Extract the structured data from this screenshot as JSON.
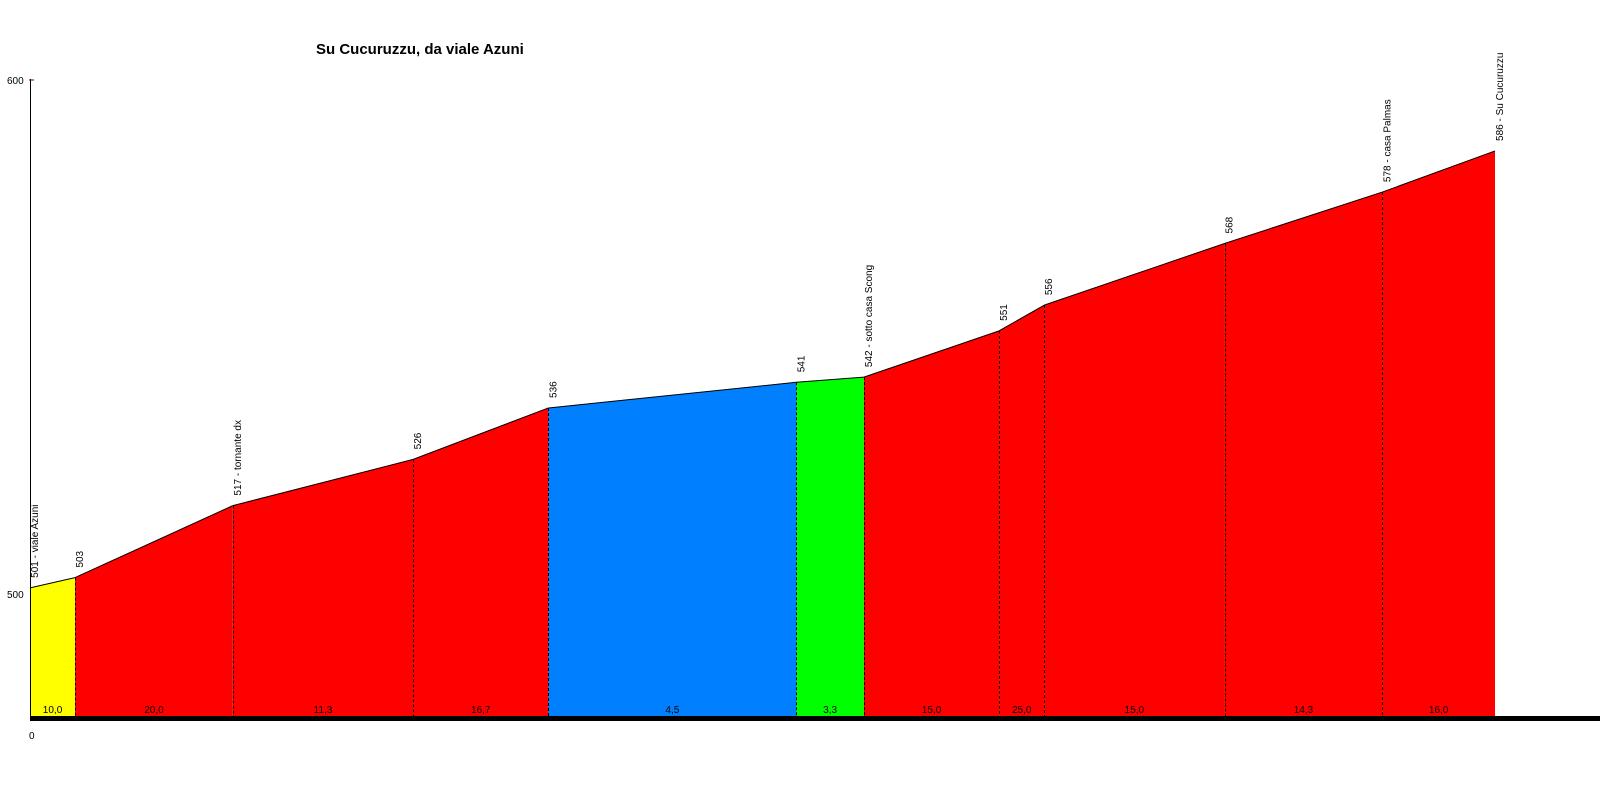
{
  "chart_data": {
    "type": "area",
    "title": "Su Cucuruzzu, da viale Azuni",
    "xlabel": "",
    "ylabel": "",
    "x_tick_labels": [
      "0"
    ],
    "y_tick_labels": [
      "600",
      "500"
    ],
    "ylim": [
      475,
      600
    ],
    "points": [
      {
        "x": 0,
        "elevation": 501,
        "label": "501 - viale Azuni"
      },
      {
        "x": 0.02,
        "elevation": 503,
        "label": "503"
      },
      {
        "x": 0.09,
        "elevation": 517,
        "label": "517 - tornante dx"
      },
      {
        "x": 0.17,
        "elevation": 526,
        "label": "526"
      },
      {
        "x": 0.23,
        "elevation": 536,
        "label": "536"
      },
      {
        "x": 0.34,
        "elevation": 541,
        "label": "541"
      },
      {
        "x": 0.37,
        "elevation": 542,
        "label": "542 - sotto casa Scong"
      },
      {
        "x": 0.43,
        "elevation": 551,
        "label": "551"
      },
      {
        "x": 0.45,
        "elevation": 556,
        "label": "556"
      },
      {
        "x": 0.53,
        "elevation": 568,
        "label": "568"
      },
      {
        "x": 0.6,
        "elevation": 578,
        "label": "578 - casa Palmas"
      },
      {
        "x": 0.65,
        "elevation": 586,
        "label": "586 - Su Cucuruzzu"
      }
    ],
    "segments": [
      {
        "gradient": "10,0",
        "color": "#ffff00"
      },
      {
        "gradient": "20,0",
        "color": "#ff0000"
      },
      {
        "gradient": "11,3",
        "color": "#ff0000"
      },
      {
        "gradient": "16,7",
        "color": "#ff0000"
      },
      {
        "gradient": "4,5",
        "color": "#0080ff"
      },
      {
        "gradient": "3,3",
        "color": "#00ff00"
      },
      {
        "gradient": "15,0",
        "color": "#ff0000"
      },
      {
        "gradient": "25,0",
        "color": "#ff0000"
      },
      {
        "gradient": "15,0",
        "color": "#ff0000"
      },
      {
        "gradient": "14,3",
        "color": "#ff0000"
      },
      {
        "gradient": "16,0",
        "color": "#ff0000"
      }
    ],
    "grid": false,
    "legend": "none"
  }
}
